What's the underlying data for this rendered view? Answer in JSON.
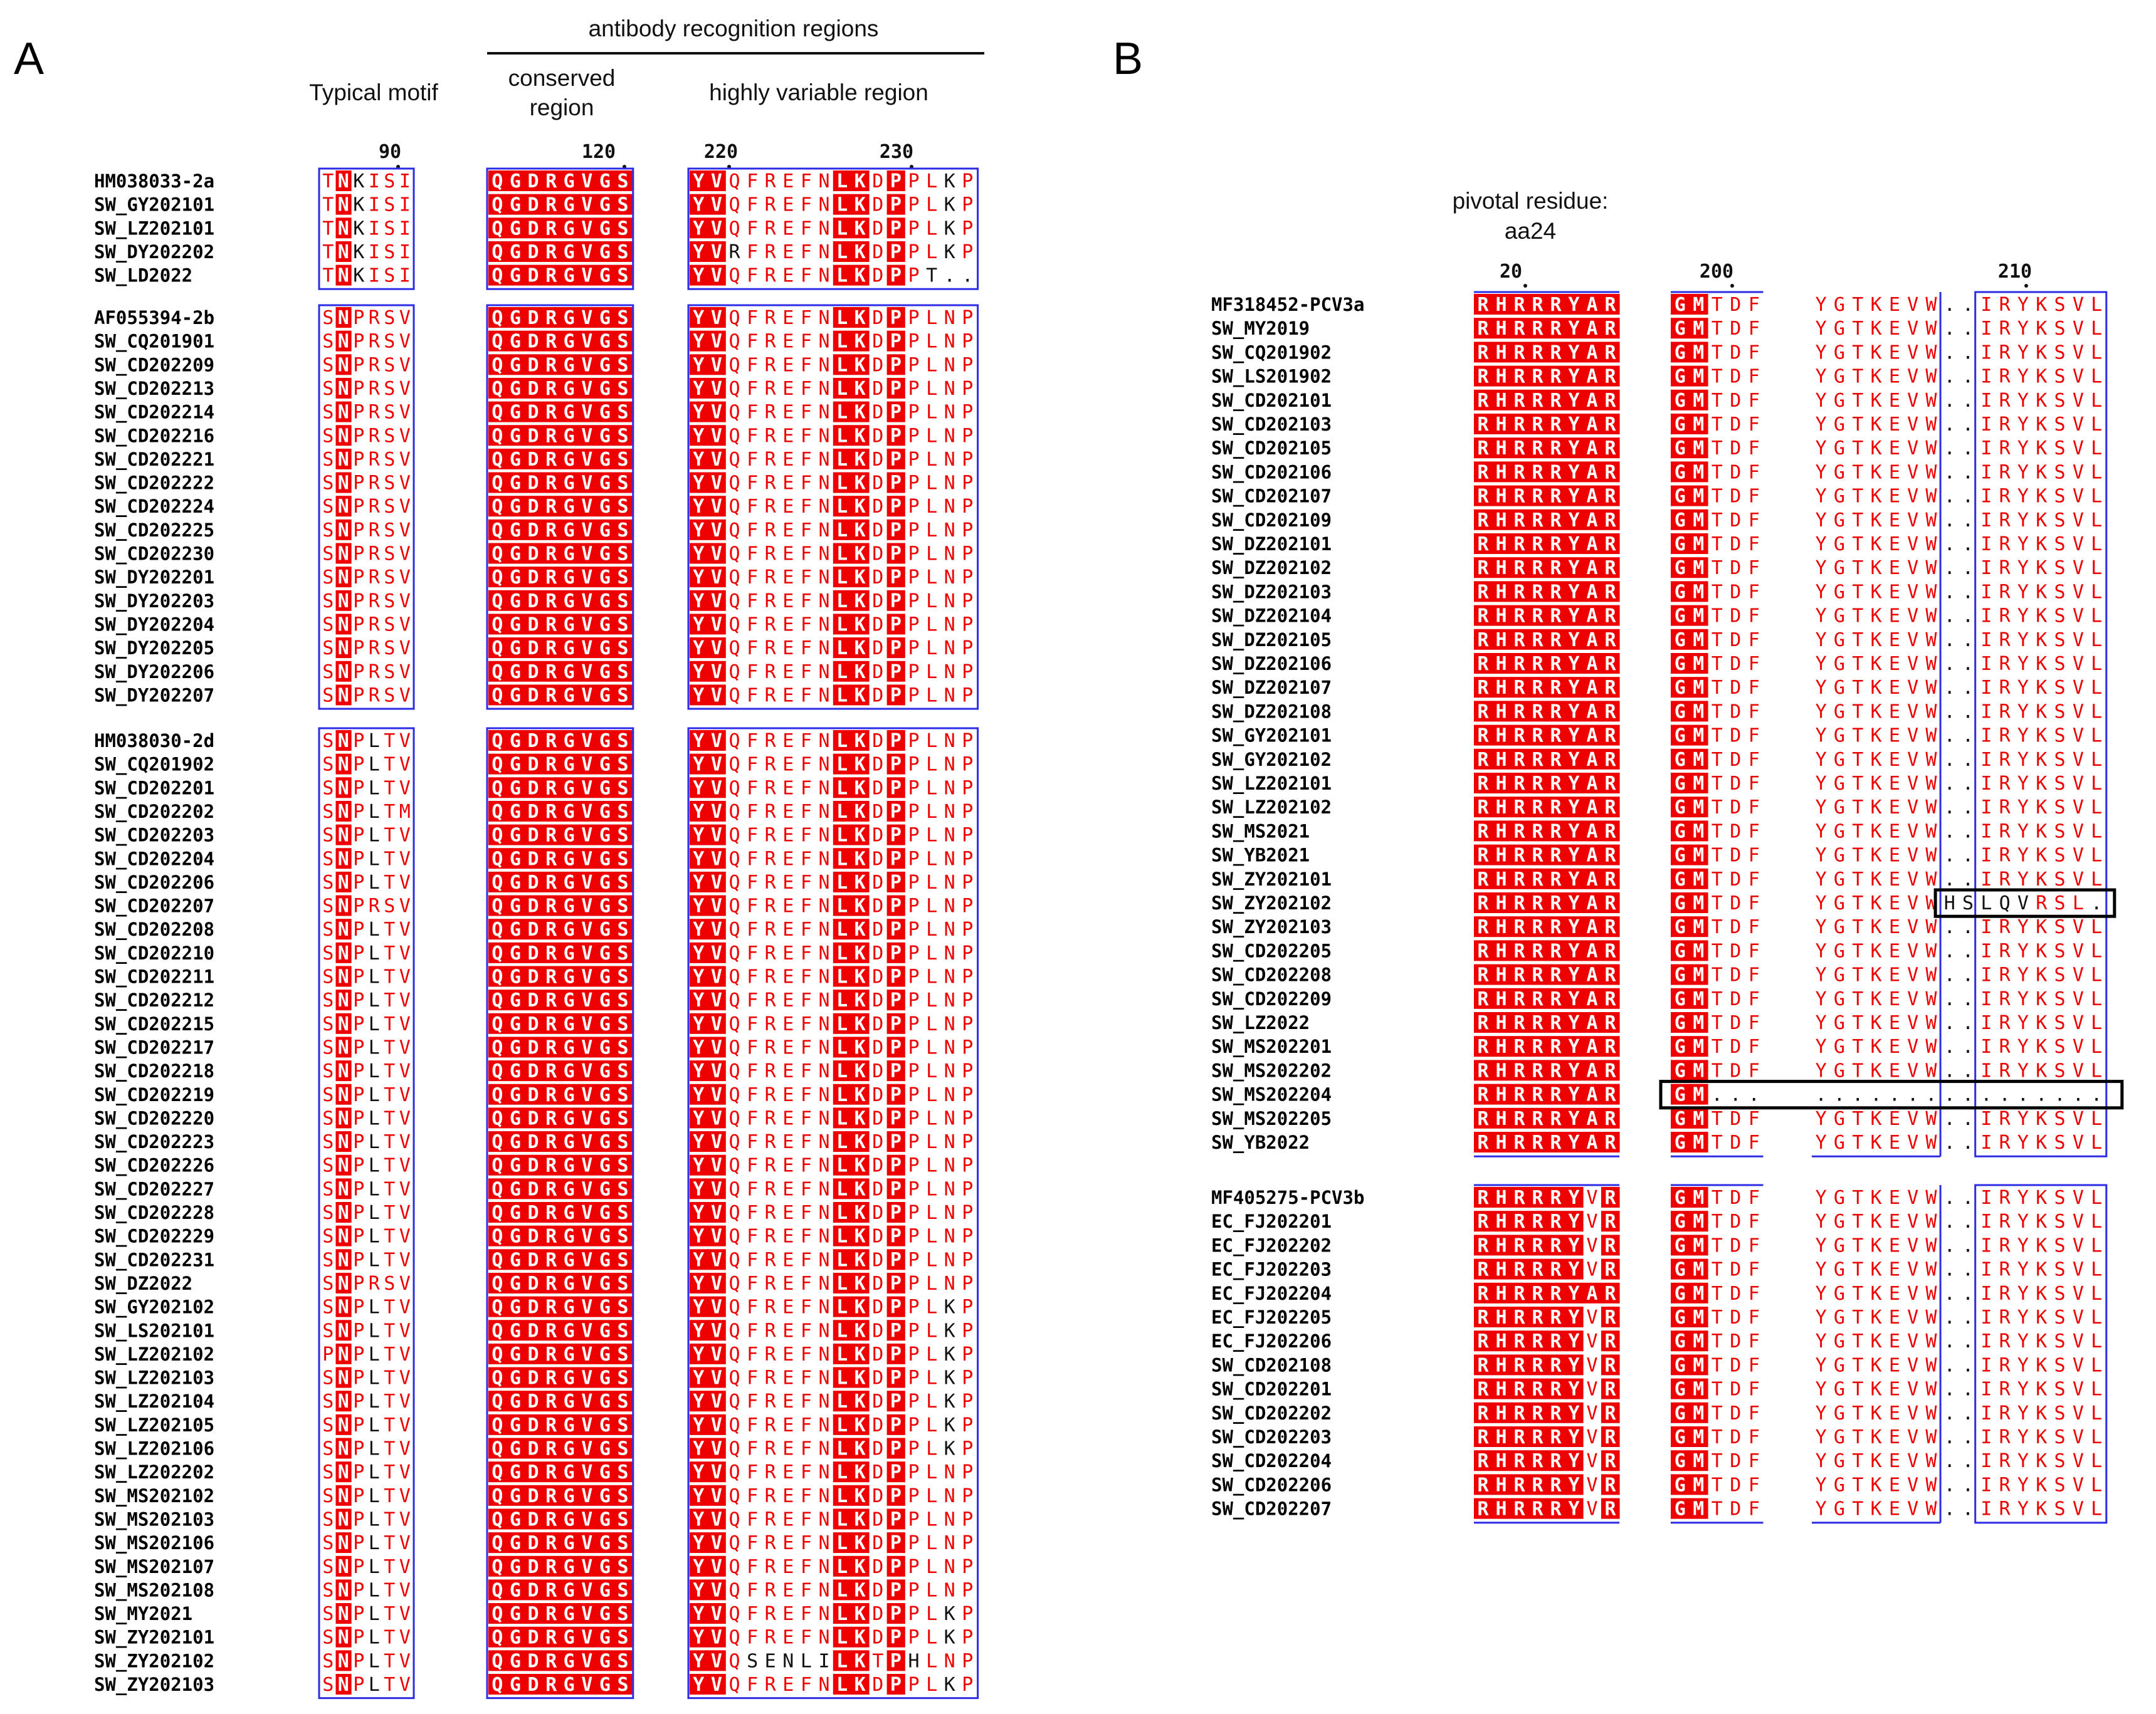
{
  "panels": {
    "a": "A",
    "b": "B"
  },
  "panel_a": {
    "header_top": "antibody recognition regions",
    "header_motif": "Typical motif",
    "header_conserved": [
      "conserved",
      "region"
    ],
    "header_variable": "highly variable region",
    "ticks": [
      "90",
      "120",
      "220",
      "230"
    ],
    "groups": [
      {
        "rows": [
          {
            "name": "HM038033-2a",
            "m": "TNKISI",
            "c": "QGDRGVGS",
            "v": "YVQFREFNLKDPPLKP"
          },
          {
            "name": "SW_GY202101",
            "m": "TNKISI",
            "c": "QGDRGVGS",
            "v": "YVQFREFNLKDPPLKP"
          },
          {
            "name": "SW_LZ202101",
            "m": "TNKISI",
            "c": "QGDRGVGS",
            "v": "YVQFREFNLKDPPLKP"
          },
          {
            "name": "SW_DY202202",
            "m": "TNKISI",
            "c": "QGDRGVGS",
            "v": "YVRFREFNLKDPPLKP"
          },
          {
            "name": "SW_LD2022",
            "m": "TNKISI",
            "c": "QGDRGVGS",
            "v": "YVQFREFNLKDPPT.."
          }
        ]
      },
      {
        "rows": [
          {
            "name": "AF055394-2b",
            "m": "SNPRSV",
            "c": "QGDRGVGS",
            "v": "YVQFREFNLKDPPLNP"
          },
          {
            "name": "SW_CQ201901",
            "m": "SNPRSV",
            "c": "QGDRGVGS",
            "v": "YVQFREFNLKDPPLNP"
          },
          {
            "name": "SW_CD202209",
            "m": "SNPRSV",
            "c": "QGDRGVGS",
            "v": "YVQFREFNLKDPPLNP"
          },
          {
            "name": "SW_CD202213",
            "m": "SNPRSV",
            "c": "QGDRGVGS",
            "v": "YVQFREFNLKDPPLNP"
          },
          {
            "name": "SW_CD202214",
            "m": "SNPRSV",
            "c": "QGDRGVGS",
            "v": "YVQFREFNLKDPPLNP"
          },
          {
            "name": "SW_CD202216",
            "m": "SNPRSV",
            "c": "QGDRGVGS",
            "v": "YVQFREFNLKDPPLNP"
          },
          {
            "name": "SW_CD202221",
            "m": "SNPRSV",
            "c": "QGDRGVGS",
            "v": "YVQFREFNLKDPPLNP"
          },
          {
            "name": "SW_CD202222",
            "m": "SNPRSV",
            "c": "QGDRGVGS",
            "v": "YVQFREFNLKDPPLNP"
          },
          {
            "name": "SW_CD202224",
            "m": "SNPRSV",
            "c": "QGDRGVGS",
            "v": "YVQFREFNLKDPPLNP"
          },
          {
            "name": "SW_CD202225",
            "m": "SNPRSV",
            "c": "QGDRGVGS",
            "v": "YVQFREFNLKDPPLNP"
          },
          {
            "name": "SW_CD202230",
            "m": "SNPRSV",
            "c": "QGDRGVGS",
            "v": "YVQFREFNLKDPPLNP"
          },
          {
            "name": "SW_DY202201",
            "m": "SNPRSV",
            "c": "QGDRGVGS",
            "v": "YVQFREFNLKDPPLNP"
          },
          {
            "name": "SW_DY202203",
            "m": "SNPRSV",
            "c": "QGDRGVGS",
            "v": "YVQFREFNLKDPPLNP"
          },
          {
            "name": "SW_DY202204",
            "m": "SNPRSV",
            "c": "QGDRGVGS",
            "v": "YVQFREFNLKDPPLNP"
          },
          {
            "name": "SW_DY202205",
            "m": "SNPRSV",
            "c": "QGDRGVGS",
            "v": "YVQFREFNLKDPPLNP"
          },
          {
            "name": "SW_DY202206",
            "m": "SNPRSV",
            "c": "QGDRGVGS",
            "v": "YVQFREFNLKDPPLNP"
          },
          {
            "name": "SW_DY202207",
            "m": "SNPRSV",
            "c": "QGDRGVGS",
            "v": "YVQFREFNLKDPPLNP"
          }
        ]
      },
      {
        "rows": [
          {
            "name": "HM038030-2d",
            "m": "SNPLTV",
            "c": "QGDRGVGS",
            "v": "YVQFREFNLKDPPLNP"
          },
          {
            "name": "SW_CQ201902",
            "m": "SNPLTV",
            "c": "QGDRGVGS",
            "v": "YVQFREFNLKDPPLNP"
          },
          {
            "name": "SW_CD202201",
            "m": "SNPLTV",
            "c": "QGDRGVGS",
            "v": "YVQFREFNLKDPPLNP"
          },
          {
            "name": "SW_CD202202",
            "m": "SNPLTM",
            "c": "QGDRGVGS",
            "v": "YVQFREFNLKDPPLNP"
          },
          {
            "name": "SW_CD202203",
            "m": "SNPLTV",
            "c": "QGDRGVGS",
            "v": "YVQFREFNLKDPPLNP"
          },
          {
            "name": "SW_CD202204",
            "m": "SNPLTV",
            "c": "QGDRGVGS",
            "v": "YVQFREFNLKDPPLNP"
          },
          {
            "name": "SW_CD202206",
            "m": "SNPLTV",
            "c": "QGDRGVGS",
            "v": "YVQFREFNLKDPPLNP"
          },
          {
            "name": "SW_CD202207",
            "m": "SNPRSV",
            "c": "QGDRGVGS",
            "v": "YVQFREFNLKDPPLNP"
          },
          {
            "name": "SW_CD202208",
            "m": "SNPLTV",
            "c": "QGDRGVGS",
            "v": "YVQFREFNLKDPPLNP"
          },
          {
            "name": "SW_CD202210",
            "m": "SNPLTV",
            "c": "QGDRGVGS",
            "v": "YVQFREFNLKDPPLNP"
          },
          {
            "name": "SW_CD202211",
            "m": "SNPLTV",
            "c": "QGDRGVGS",
            "v": "YVQFREFNLKDPPLNP"
          },
          {
            "name": "SW_CD202212",
            "m": "SNPLTV",
            "c": "QGDRGVGS",
            "v": "YVQFREFNLKDPPLNP"
          },
          {
            "name": "SW_CD202215",
            "m": "SNPLTV",
            "c": "QGDRGVGS",
            "v": "YVQFREFNLKDPPLNP"
          },
          {
            "name": "SW_CD202217",
            "m": "SNPLTV",
            "c": "QGDRGVGS",
            "v": "YVQFREFNLKDPPLNP"
          },
          {
            "name": "SW_CD202218",
            "m": "SNPLTV",
            "c": "QGDRGVGS",
            "v": "YVQFREFNLKDPPLNP"
          },
          {
            "name": "SW_CD202219",
            "m": "SNPLTV",
            "c": "QGDRGVGS",
            "v": "YVQFREFNLKDPPLNP"
          },
          {
            "name": "SW_CD202220",
            "m": "SNPLTV",
            "c": "QGDRGVGS",
            "v": "YVQFREFNLKDPPLNP"
          },
          {
            "name": "SW_CD202223",
            "m": "SNPLTV",
            "c": "QGDRGVGS",
            "v": "YVQFREFNLKDPPLNP"
          },
          {
            "name": "SW_CD202226",
            "m": "SNPLTV",
            "c": "QGDRGVGS",
            "v": "YVQFREFNLKDPPLNP"
          },
          {
            "name": "SW_CD202227",
            "m": "SNPLTV",
            "c": "QGDRGVGS",
            "v": "YVQFREFNLKDPPLNP"
          },
          {
            "name": "SW_CD202228",
            "m": "SNPLTV",
            "c": "QGDRGVGS",
            "v": "YVQFREFNLKDPPLNP"
          },
          {
            "name": "SW_CD202229",
            "m": "SNPLTV",
            "c": "QGDRGVGS",
            "v": "YVQFREFNLKDPPLNP"
          },
          {
            "name": "SW_CD202231",
            "m": "SNPLTV",
            "c": "QGDRGVGS",
            "v": "YVQFREFNLKDPPLNP"
          },
          {
            "name": "SW_DZ2022",
            "m": "SNPRSV",
            "c": "QGDRGVGS",
            "v": "YVQFREFNLKDPPLNP"
          },
          {
            "name": "SW_GY202102",
            "m": "SNPLTV",
            "c": "QGDRGVGS",
            "v": "YVQFREFNLKDPPLKP"
          },
          {
            "name": "SW_LS202101",
            "m": "SNPLTV",
            "c": "QGDRGVGS",
            "v": "YVQFREFNLKDPPLKP"
          },
          {
            "name": "SW_LZ202102",
            "m": "PNPLTV",
            "c": "QGDRGVGS",
            "v": "YVQFREFNLKDPPLKP"
          },
          {
            "name": "SW_LZ202103",
            "m": "SNPLTV",
            "c": "QGDRGVGS",
            "v": "YVQFREFNLKDPPLKP"
          },
          {
            "name": "SW_LZ202104",
            "m": "SNPLTV",
            "c": "QGDRGVGS",
            "v": "YVQFREFNLKDPPLKP"
          },
          {
            "name": "SW_LZ202105",
            "m": "SNPLTV",
            "c": "QGDRGVGS",
            "v": "YVQFREFNLKDPPLKP"
          },
          {
            "name": "SW_LZ202106",
            "m": "SNPLTV",
            "c": "QGDRGVGS",
            "v": "YVQFREFNLKDPPLKP"
          },
          {
            "name": "SW_LZ202202",
            "m": "SNPLTV",
            "c": "QGDRGVGS",
            "v": "YVQFREFNLKDPPLNP"
          },
          {
            "name": "SW_MS202102",
            "m": "SNPLTV",
            "c": "QGDRGVGS",
            "v": "YVQFREFNLKDPPLNP"
          },
          {
            "name": "SW_MS202103",
            "m": "SNPLTV",
            "c": "QGDRGVGS",
            "v": "YVQFREFNLKDPPLNP"
          },
          {
            "name": "SW_MS202106",
            "m": "SNPLTV",
            "c": "QGDRGVGS",
            "v": "YVQFREFNLKDPPLNP"
          },
          {
            "name": "SW_MS202107",
            "m": "SNPLTV",
            "c": "QGDRGVGS",
            "v": "YVQFREFNLKDPPLNP"
          },
          {
            "name": "SW_MS202108",
            "m": "SNPLTV",
            "c": "QGDRGVGS",
            "v": "YVQFREFNLKDPPLNP"
          },
          {
            "name": "SW_MY2021",
            "m": "SNPLTV",
            "c": "QGDRGVGS",
            "v": "YVQFREFNLKDPPLKP"
          },
          {
            "name": "SW_ZY202101",
            "m": "SNPLTV",
            "c": "QGDRGVGS",
            "v": "YVQFREFNLKDPPLKP"
          },
          {
            "name": "SW_ZY202102",
            "m": "SNPLTV",
            "c": "QGDRGVGS",
            "v": "YVQSENLILKTPHLNP"
          },
          {
            "name": "SW_ZY202103",
            "m": "SNPLTV",
            "c": "QGDRGVGS",
            "v": "YVQFREFNLKDPPLKP"
          }
        ]
      }
    ]
  },
  "panel_b": {
    "header_pivotal": [
      "pivotal residue:",
      "aa24"
    ],
    "ticks": [
      "20",
      "200",
      "210"
    ],
    "groups": [
      {
        "rows": [
          {
            "name": "MF318452-PCV3a",
            "r": "RHRRRYAR",
            "g": "GMTDF",
            "y": "YGTKEVW..IRYKSVL"
          },
          {
            "name": "SW_MY2019",
            "r": "RHRRRYAR",
            "g": "GMTDF",
            "y": "YGTKEVW..IRYKSVL"
          },
          {
            "name": "SW_CQ201902",
            "r": "RHRRRYAR",
            "g": "GMTDF",
            "y": "YGTKEVW..IRYKSVL"
          },
          {
            "name": "SW_LS201902",
            "r": "RHRRRYAR",
            "g": "GMTDF",
            "y": "YGTKEVW..IRYKSVL"
          },
          {
            "name": "SW_CD202101",
            "r": "RHRRRYAR",
            "g": "GMTDF",
            "y": "YGTKEVW..IRYKSVL"
          },
          {
            "name": "SW_CD202103",
            "r": "RHRRRYAR",
            "g": "GMTDF",
            "y": "YGTKEVW..IRYKSVL"
          },
          {
            "name": "SW_CD202105",
            "r": "RHRRRYAR",
            "g": "GMTDF",
            "y": "YGTKEVW..IRYKSVL"
          },
          {
            "name": "SW_CD202106",
            "r": "RHRRRYAR",
            "g": "GMTDF",
            "y": "YGTKEVW..IRYKSVL"
          },
          {
            "name": "SW_CD202107",
            "r": "RHRRRYAR",
            "g": "GMTDF",
            "y": "YGTKEVW..IRYKSVL"
          },
          {
            "name": "SW_CD202109",
            "r": "RHRRRYAR",
            "g": "GMTDF",
            "y": "YGTKEVW..IRYKSVL"
          },
          {
            "name": "SW_DZ202101",
            "r": "RHRRRYAR",
            "g": "GMTDF",
            "y": "YGTKEVW..IRYKSVL"
          },
          {
            "name": "SW_DZ202102",
            "r": "RHRRRYAR",
            "g": "GMTDF",
            "y": "YGTKEVW..IRYKSVL"
          },
          {
            "name": "SW_DZ202103",
            "r": "RHRRRYAR",
            "g": "GMTDF",
            "y": "YGTKEVW..IRYKSVL"
          },
          {
            "name": "SW_DZ202104",
            "r": "RHRRRYAR",
            "g": "GMTDF",
            "y": "YGTKEVW..IRYKSVL"
          },
          {
            "name": "SW_DZ202105",
            "r": "RHRRRYAR",
            "g": "GMTDF",
            "y": "YGTKEVW..IRYKSVL"
          },
          {
            "name": "SW_DZ202106",
            "r": "RHRRRYAR",
            "g": "GMTDF",
            "y": "YGTKEVW..IRYKSVL"
          },
          {
            "name": "SW_DZ202107",
            "r": "RHRRRYAR",
            "g": "GMTDF",
            "y": "YGTKEVW..IRYKSVL"
          },
          {
            "name": "SW_DZ202108",
            "r": "RHRRRYAR",
            "g": "GMTDF",
            "y": "YGTKEVW..IRYKSVL"
          },
          {
            "name": "SW_GY202101",
            "r": "RHRRRYAR",
            "g": "GMTDF",
            "y": "YGTKEVW..IRYKSVL"
          },
          {
            "name": "SW_GY202102",
            "r": "RHRRRYAR",
            "g": "GMTDF",
            "y": "YGTKEVW..IRYKSVL"
          },
          {
            "name": "SW_LZ202101",
            "r": "RHRRRYAR",
            "g": "GMTDF",
            "y": "YGTKEVW..IRYKSVL"
          },
          {
            "name": "SW_LZ202102",
            "r": "RHRRRYAR",
            "g": "GMTDF",
            "y": "YGTKEVW..IRYKSVL"
          },
          {
            "name": "SW_MS2021",
            "r": "RHRRRYAR",
            "g": "GMTDF",
            "y": "YGTKEVW..IRYKSVL"
          },
          {
            "name": "SW_YB2021",
            "r": "RHRRRYAR",
            "g": "GMTDF",
            "y": "YGTKEVW..IRYKSVL"
          },
          {
            "name": "SW_ZY202101",
            "r": "RHRRRYAR",
            "g": "GMTDF",
            "y": "YGTKEVW..IRYKSVL"
          },
          {
            "name": "SW_ZY202102",
            "r": "RHRRRYAR",
            "g": "GMTDF",
            "y": "YGTKEVWHSLQVRSL.",
            "boxed": true
          },
          {
            "name": "SW_ZY202103",
            "r": "RHRRRYAR",
            "g": "GMTDF",
            "y": "YGTKEVW..IRYKSVL"
          },
          {
            "name": "SW_CD202205",
            "r": "RHRRRYAR",
            "g": "GMTDF",
            "y": "YGTKEVW..IRYKSVL"
          },
          {
            "name": "SW_CD202208",
            "r": "RHRRRYAR",
            "g": "GMTDF",
            "y": "YGTKEVW..IRYKSVL"
          },
          {
            "name": "SW_CD202209",
            "r": "RHRRRYAR",
            "g": "GMTDF",
            "y": "YGTKEVW..IRYKSVL"
          },
          {
            "name": "SW_LZ2022",
            "r": "RHRRRYAR",
            "g": "GMTDF",
            "y": "YGTKEVW..IRYKSVL"
          },
          {
            "name": "SW_MS202201",
            "r": "RHRRRYAR",
            "g": "GMTDF",
            "y": "YGTKEVW..IRYKSVL"
          },
          {
            "name": "SW_MS202202",
            "r": "RHRRRYAR",
            "g": "GMTDF",
            "y": "YGTKEVW..IRYKSVL"
          },
          {
            "name": "SW_MS202204",
            "r": "RHRRRYAR",
            "g": "GM...",
            "y": "................",
            "boxed": true
          },
          {
            "name": "SW_MS202205",
            "r": "RHRRRYAR",
            "g": "GMTDF",
            "y": "YGTKEVW..IRYKSVL"
          },
          {
            "name": "SW_YB2022",
            "r": "RHRRRYAR",
            "g": "GMTDF",
            "y": "YGTKEVW..IRYKSVL"
          }
        ]
      },
      {
        "rows": [
          {
            "name": "MF405275-PCV3b",
            "r": "RHRRRYVR",
            "g": "GMTDF",
            "y": "YGTKEVW..IRYKSVL"
          },
          {
            "name": "EC_FJ202201",
            "r": "RHRRRYVR",
            "g": "GMTDF",
            "y": "YGTKEVW..IRYKSVL"
          },
          {
            "name": "EC_FJ202202",
            "r": "RHRRRYVR",
            "g": "GMTDF",
            "y": "YGTKEVW..IRYKSVL"
          },
          {
            "name": "EC_FJ202203",
            "r": "RHRRRYVR",
            "g": "GMTDF",
            "y": "YGTKEVW..IRYKSVL"
          },
          {
            "name": "EC_FJ202204",
            "r": "RHRRRYAR",
            "g": "GMTDF",
            "y": "YGTKEVW..IRYKSVL"
          },
          {
            "name": "EC_FJ202205",
            "r": "RHRRRYVR",
            "g": "GMTDF",
            "y": "YGTKEVW..IRYKSVL"
          },
          {
            "name": "EC_FJ202206",
            "r": "RHRRRYVR",
            "g": "GMTDF",
            "y": "YGTKEVW..IRYKSVL"
          },
          {
            "name": "SW_CD202108",
            "r": "RHRRRYVR",
            "g": "GMTDF",
            "y": "YGTKEVW..IRYKSVL"
          },
          {
            "name": "SW_CD202201",
            "r": "RHRRRYVR",
            "g": "GMTDF",
            "y": "YGTKEVW..IRYKSVL"
          },
          {
            "name": "SW_CD202202",
            "r": "RHRRRYVR",
            "g": "GMTDF",
            "y": "YGTKEVW..IRYKSVL"
          },
          {
            "name": "SW_CD202203",
            "r": "RHRRRYVR",
            "g": "GMTDF",
            "y": "YGTKEVW..IRYKSVL"
          },
          {
            "name": "SW_CD202204",
            "r": "RHRRRYVR",
            "g": "GMTDF",
            "y": "YGTKEVW..IRYKSVL"
          },
          {
            "name": "SW_CD202206",
            "r": "RHRRRYVR",
            "g": "GMTDF",
            "y": "YGTKEVW..IRYKSVL"
          },
          {
            "name": "SW_CD202207",
            "r": "RHRRRYVR",
            "g": "GMTDF",
            "y": "YGTKEVW..IRYKSVL"
          }
        ]
      }
    ]
  },
  "colors": {
    "red": "#ee0000",
    "blue": "#2c2ce6",
    "ink": "#111111"
  }
}
